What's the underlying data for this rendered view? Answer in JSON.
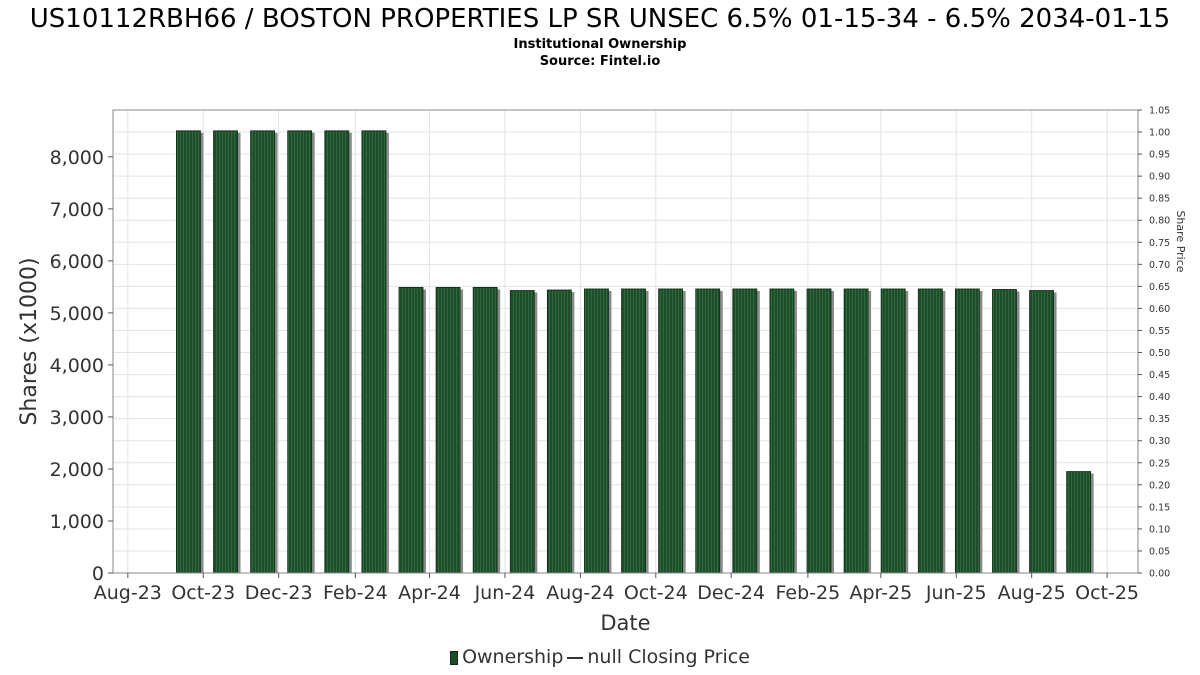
{
  "header": {
    "title": "US10112RBH66 / BOSTON PROPERTIES LP SR UNSEC 6.5% 01-15-34 - 6.5% 2034-01-15",
    "subtitle1": "Institutional Ownership",
    "subtitle2": "Source: Fintel.io"
  },
  "legend": {
    "ownership": "Ownership",
    "price": "null Closing Price"
  },
  "colors": {
    "bar": "#1f4d2b",
    "bar_stripe": "#2e6b3c",
    "bar_shadow": "#8a8a8a",
    "grid": "#e3e3e3"
  },
  "chart_data": {
    "type": "bar",
    "xlabel": "Date",
    "ylabel": "Shares (x1000)",
    "y2label": "Share Price",
    "ylim": [
      0,
      8900
    ],
    "y2lim": [
      0,
      1.05
    ],
    "yticks": [
      0,
      1000,
      2000,
      3000,
      4000,
      5000,
      6000,
      7000,
      8000
    ],
    "ytick_labels": [
      "0",
      "1,000",
      "2,000",
      "3,000",
      "4,000",
      "5,000",
      "6,000",
      "7,000",
      "8,000"
    ],
    "y2ticks": [
      0,
      0.05,
      0.1,
      0.15,
      0.2,
      0.25,
      0.3,
      0.35,
      0.4,
      0.45,
      0.5,
      0.55,
      0.6,
      0.65,
      0.7,
      0.75,
      0.8,
      0.85,
      0.9,
      0.95,
      1.0,
      1.05
    ],
    "y2tick_labels": [
      "0.00",
      "0.05",
      "0.10",
      "0.15",
      "0.20",
      "0.25",
      "0.30",
      "0.35",
      "0.40",
      "0.45",
      "0.50",
      "0.55",
      "0.60",
      "0.65",
      "0.70",
      "0.75",
      "0.80",
      "0.85",
      "0.90",
      "0.95",
      "1.00",
      "1.05"
    ],
    "xlim": [
      "2023-07-20",
      "2025-10-26"
    ],
    "xticks": [
      "2023-08-01",
      "2023-10-01",
      "2023-12-01",
      "2024-02-01",
      "2024-04-01",
      "2024-06-01",
      "2024-08-01",
      "2024-10-01",
      "2024-12-01",
      "2025-02-01",
      "2025-04-01",
      "2025-06-01",
      "2025-08-01",
      "2025-10-01"
    ],
    "xtick_labels": [
      "Aug-23",
      "Oct-23",
      "Dec-23",
      "Feb-24",
      "Apr-24",
      "Jun-24",
      "Aug-24",
      "Oct-24",
      "Dec-24",
      "Feb-25",
      "Apr-25",
      "Jun-25",
      "Aug-25",
      "Oct-25"
    ],
    "grid": true,
    "series": [
      {
        "name": "Ownership",
        "x": [
          "2023-09-19",
          "2023-10-19",
          "2023-11-18",
          "2023-12-18",
          "2024-01-17",
          "2024-02-16",
          "2024-03-17",
          "2024-04-16",
          "2024-05-16",
          "2024-06-15",
          "2024-07-15",
          "2024-08-14",
          "2024-09-13",
          "2024-10-13",
          "2024-11-12",
          "2024-12-12",
          "2025-01-11",
          "2025-02-10",
          "2025-03-12",
          "2025-04-11",
          "2025-05-11",
          "2025-06-10",
          "2025-07-10",
          "2025-08-09",
          "2025-09-08"
        ],
        "values": [
          8500,
          8500,
          8500,
          8500,
          8500,
          8500,
          5490,
          5490,
          5490,
          5430,
          5440,
          5460,
          5460,
          5460,
          5460,
          5460,
          5460,
          5460,
          5460,
          5460,
          5460,
          5460,
          5450,
          5430,
          1950
        ]
      }
    ]
  }
}
